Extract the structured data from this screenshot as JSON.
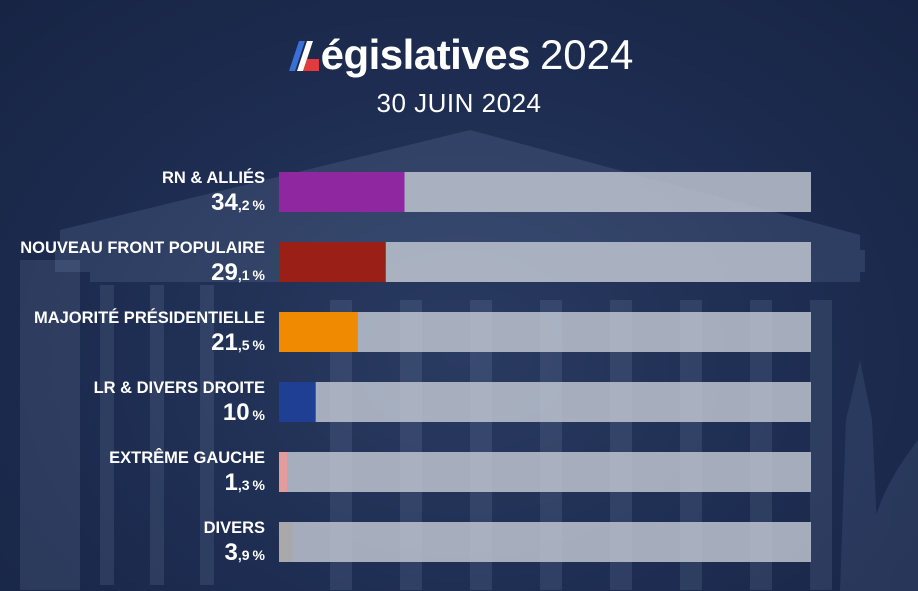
{
  "header": {
    "title_main": "égislatives",
    "title_year": "2024",
    "subtitle": "30 JUIN 2024"
  },
  "colors": {
    "background": "#1c2b4e",
    "track": "#c3c9d4"
  },
  "chart_data": {
    "type": "bar",
    "orientation": "horizontal",
    "title": "Législatives 2024",
    "subtitle": "30 JUIN 2024",
    "xlim": [
      0,
      100
    ],
    "grid": false,
    "legend": "none",
    "categories": [
      "RN & ALLIÉS",
      "NOUVEAU FRONT POPULAIRE",
      "MAJORITÉ PRÉSIDENTIELLE",
      "LR & DIVERS DROITE",
      "EXTRÊME GAUCHE",
      "DIVERS"
    ],
    "values": [
      34.2,
      29.1,
      21.5,
      10,
      1.3,
      3.9
    ],
    "value_labels": [
      {
        "integer": "34",
        "decimal": ",2",
        "unit": "%"
      },
      {
        "integer": "29",
        "decimal": ",1",
        "unit": "%"
      },
      {
        "integer": "21",
        "decimal": ",5",
        "unit": "%"
      },
      {
        "integer": "10",
        "decimal": "",
        "unit": "%"
      },
      {
        "integer": "1",
        "decimal": ",3",
        "unit": "%"
      },
      {
        "integer": "3",
        "decimal": ",9",
        "unit": "%"
      }
    ],
    "colors": [
      "#8e27a0",
      "#9a1f16",
      "#f08a00",
      "#1e3f93",
      "#e79a9a",
      "#a9a9ab"
    ]
  }
}
